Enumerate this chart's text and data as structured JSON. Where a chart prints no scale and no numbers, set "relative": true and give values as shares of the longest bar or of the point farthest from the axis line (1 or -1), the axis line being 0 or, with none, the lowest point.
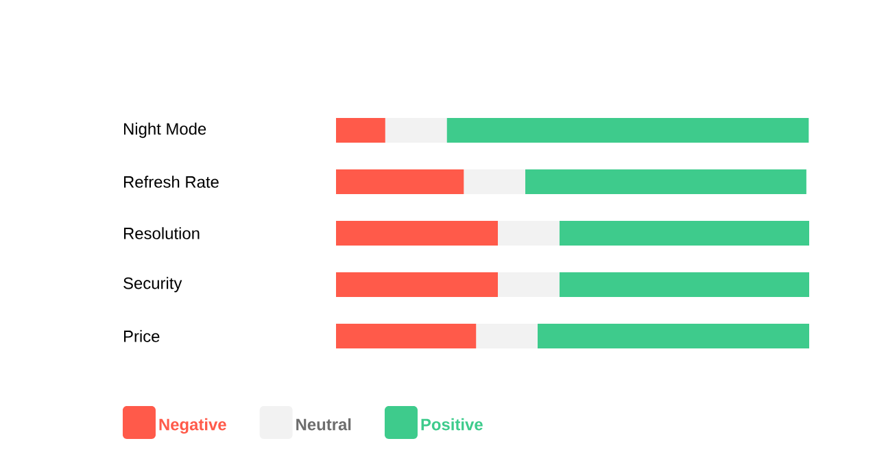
{
  "chart_data": {
    "type": "bar",
    "orientation": "horizontal",
    "stacked": true,
    "relative": true,
    "legend": "bottom",
    "categories": [
      "Night Mode",
      "Refresh Rate",
      "Resolution",
      "Security",
      "Price"
    ],
    "series": [
      {
        "name": "Negative",
        "color": "#ff5a4a",
        "values": [
          0.104,
          0.27,
          0.342,
          0.342,
          0.296
        ]
      },
      {
        "name": "Neutral",
        "color": "#f2f2f2",
        "values": [
          0.13,
          0.13,
          0.13,
          0.13,
          0.13
        ]
      },
      {
        "name": "Positive",
        "color": "#3ecb8c",
        "values": [
          0.765,
          0.594,
          0.528,
          0.528,
          0.574
        ]
      }
    ]
  }
}
